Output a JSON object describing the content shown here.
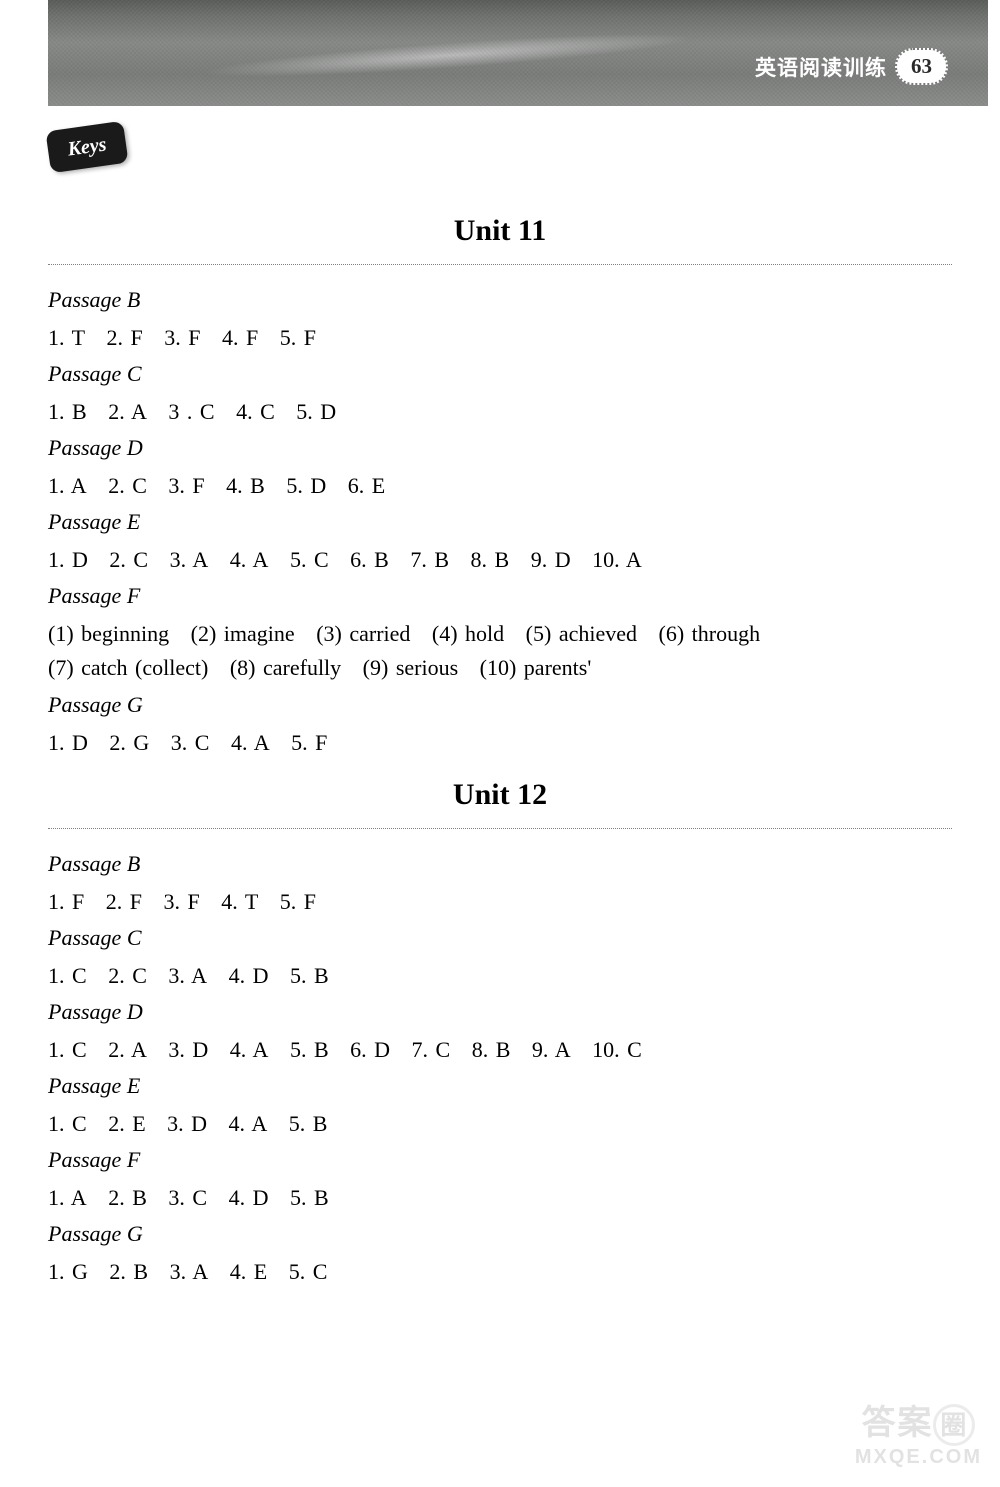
{
  "header": {
    "badge_text": "英语阅读训练",
    "page_number": "63"
  },
  "keys_label": "Keys",
  "units": [
    {
      "title": "Unit 11",
      "passages": [
        {
          "label": "Passage B",
          "answers": [
            "1. T",
            "2. F",
            "3. F",
            "4. F",
            "5. F"
          ]
        },
        {
          "label": "Passage C",
          "answers": [
            "1. B",
            "2. A",
            "3 . C",
            "4. C",
            "5. D"
          ]
        },
        {
          "label": "Passage D",
          "answers": [
            "1. A",
            "2. C",
            "3. F",
            "4. B",
            "5. D",
            "6. E"
          ]
        },
        {
          "label": "Passage E",
          "answers": [
            "1. D",
            "2. C",
            "3. A",
            "4. A",
            "5. C",
            "6. B",
            "7. B",
            "8. B",
            "9. D",
            "10. A"
          ]
        },
        {
          "label": "Passage F",
          "answers": [
            "(1) beginning",
            "(2) imagine",
            "(3) carried",
            "(4) hold",
            "(5) achieved",
            "(6) through",
            "(7) catch (collect)",
            "(8) carefully",
            "(9) serious",
            "(10) parents'"
          ]
        },
        {
          "label": "Passage G",
          "answers": [
            "1. D",
            "2. G",
            "3. C",
            "4. A",
            "5. F"
          ]
        }
      ]
    },
    {
      "title": "Unit 12",
      "passages": [
        {
          "label": "Passage B",
          "answers": [
            "1. F",
            "2. F",
            "3. F",
            "4. T",
            "5. F"
          ]
        },
        {
          "label": "Passage C",
          "answers": [
            "1. C",
            "2. C",
            "3. A",
            "4. D",
            "5. B"
          ]
        },
        {
          "label": "Passage D",
          "answers": [
            "1. C",
            "2. A",
            "3. D",
            "4. A",
            "5. B",
            "6. D",
            "7. C",
            "8. B",
            "9. A",
            "10. C"
          ]
        },
        {
          "label": "Passage E",
          "answers": [
            "1. C",
            "2. E",
            "3. D",
            "4. A",
            "5. B"
          ]
        },
        {
          "label": "Passage F",
          "answers": [
            "1. A",
            "2. B",
            "3. C",
            "4. D",
            "5. B"
          ]
        },
        {
          "label": "Passage G",
          "answers": [
            "1. G",
            "2. B",
            "3. A",
            "4. E",
            "5. C"
          ]
        }
      ]
    }
  ],
  "watermark": {
    "top": "答案",
    "circle": "圈",
    "bottom": "MXQE.COM"
  },
  "colors": {
    "banner_bg": "#7a7c7a",
    "badge_bg": "#ffffff",
    "badge_text": "#2a2a2a",
    "keys_bg": "#1a1a1a",
    "dotted": "#808080",
    "text": "#000000"
  }
}
